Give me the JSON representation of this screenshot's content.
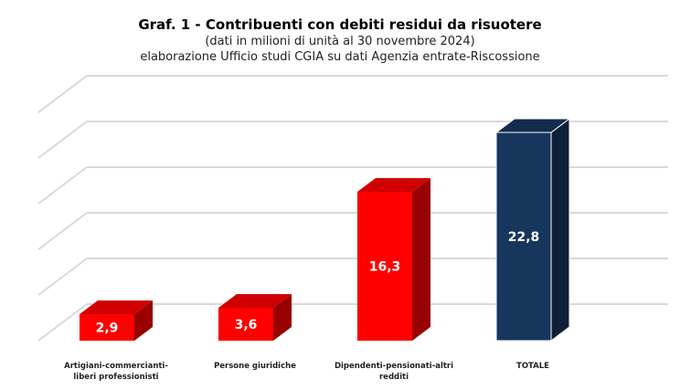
{
  "chart_data": {
    "type": "bar",
    "title": "Graf. 1 - Contribuenti con debiti residui da risuotere",
    "subtitle": "(dati in milioni di unità al 30 novembre 2024)",
    "source": "elaborazione Ufficio studi CGIA su dati Agenzia entrate-Riscossione",
    "categories": [
      "Artigiani-commercianti-liberi professionisti",
      "Persone giuridiche",
      "Dipendenti-pensionati-altri redditi",
      "TOTALE"
    ],
    "values": [
      2.9,
      3.6,
      16.3,
      22.8
    ],
    "value_labels": [
      "2,9",
      "3,6",
      "16,3",
      "22,8"
    ],
    "colors": [
      "#ff0000",
      "#ff0000",
      "#ff0000",
      "#17365d"
    ],
    "ylim": [
      0,
      25
    ],
    "grid": true,
    "style": "3d-column"
  }
}
